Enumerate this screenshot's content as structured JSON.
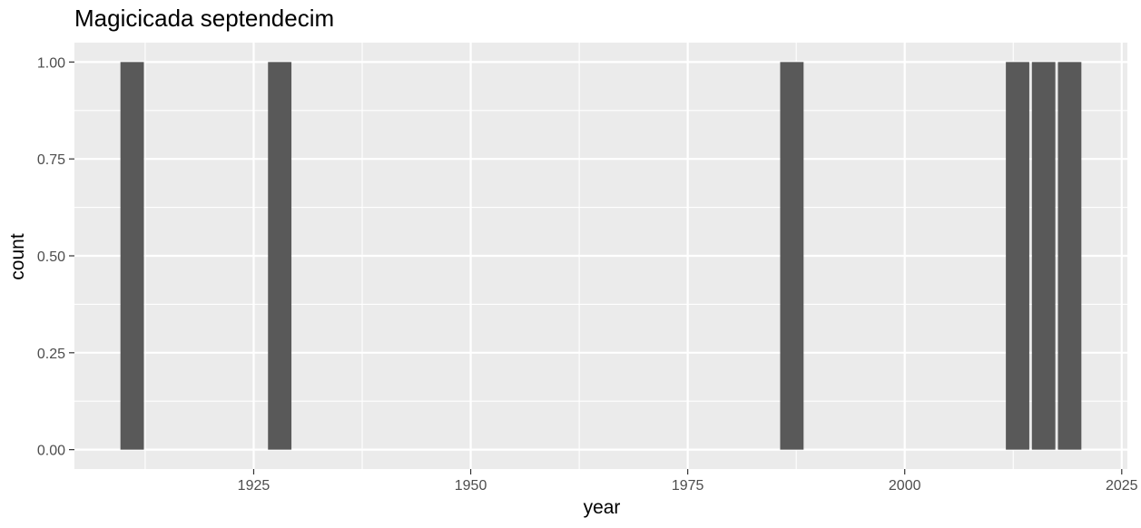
{
  "chart_data": {
    "type": "bar",
    "title": "Magicicada septendecim",
    "xlabel": "year",
    "ylabel": "count",
    "x": [
      1911,
      1928,
      1987,
      2013,
      2016,
      2019
    ],
    "values": [
      1,
      1,
      1,
      1,
      1,
      1
    ],
    "xlim": [
      1904.35,
      2025.65
    ],
    "ylim": [
      -0.05,
      1.05
    ],
    "x_ticks": [
      1925,
      1950,
      1975,
      2000,
      2025
    ],
    "y_ticks": [
      0,
      0.25,
      0.5,
      0.75,
      1
    ],
    "x_tick_labels": [
      "1925",
      "1950",
      "1975",
      "2000",
      "2025"
    ],
    "y_tick_labels": [
      "0.00",
      "0.25",
      "0.50",
      "0.75",
      "1.00"
    ],
    "bar_width_years": 2.7,
    "grid": true,
    "legend": "none",
    "colors": {
      "panel": "#ebebeb",
      "grid": "#ffffff",
      "bar": "#595959",
      "tick": "#333333",
      "tick_label": "#4d4d4d"
    }
  }
}
